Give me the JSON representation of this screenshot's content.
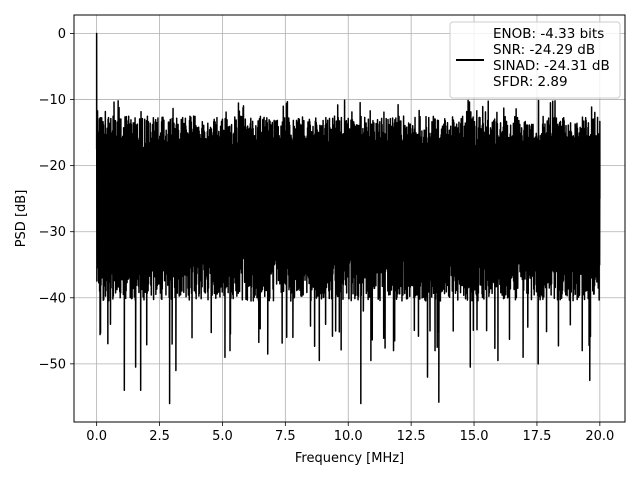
{
  "chart_data": {
    "type": "line",
    "title": "",
    "xlabel": "Frequency [MHz]",
    "ylabel": "PSD [dB]",
    "xlim": [
      -0.9,
      21.0
    ],
    "ylim": [
      -58.8,
      2.8
    ],
    "grid": true,
    "x_ticks": [
      {
        "value": 0.0,
        "label": "0.0"
      },
      {
        "value": 2.5,
        "label": "2.5"
      },
      {
        "value": 5.0,
        "label": "5.0"
      },
      {
        "value": 7.5,
        "label": "7.5"
      },
      {
        "value": 10.0,
        "label": "10.0"
      },
      {
        "value": 12.5,
        "label": "12.5"
      },
      {
        "value": 15.0,
        "label": "15.0"
      },
      {
        "value": 17.5,
        "label": "17.5"
      },
      {
        "value": 20.0,
        "label": "20.0"
      }
    ],
    "y_ticks": [
      {
        "value": 0,
        "label": "0"
      },
      {
        "value": -10,
        "label": "−10"
      },
      {
        "value": -20,
        "label": "−20"
      },
      {
        "value": -30,
        "label": "−30"
      },
      {
        "value": -40,
        "label": "−40"
      },
      {
        "value": -50,
        "label": "−50"
      }
    ],
    "legend": {
      "position": "top-right",
      "lines": [
        "ENOB: -4.33 bits",
        "SNR: -24.29 dB",
        "SINAD: -24.31 dB",
        "SFDR: 2.89"
      ]
    },
    "series": [
      {
        "color": "#000000",
        "x": [
          0.0,
          0.05,
          0.1,
          0.15,
          0.2,
          0.3,
          0.45,
          0.55,
          0.7,
          1.1,
          1.2,
          1.55,
          1.75,
          2.9,
          3.0,
          3.15,
          5.1,
          5.3,
          6.8,
          7.8,
          8.85,
          10.5,
          10.6,
          10.9,
          11.8,
          13.15,
          13.25,
          13.45,
          13.6,
          14.85,
          15.95,
          16.95,
          17.55,
          19.3,
          19.6,
          20.0
        ],
        "y": [
          0.0,
          -18.0,
          -23.0,
          -41.0,
          -20.0,
          -38.0,
          -25.0,
          -44.0,
          -30.0,
          -54.0,
          -35.0,
          -50.5,
          -54.0,
          -56.0,
          -47.0,
          -51.0,
          -49.0,
          -48.0,
          -48.5,
          -46.0,
          -49.5,
          -56.0,
          -42.0,
          -49.5,
          -48.0,
          -52.0,
          -45.0,
          -48.0,
          -55.8,
          -50.5,
          -49.5,
          -49.0,
          -50.0,
          -48.0,
          -52.5,
          -25.0
        ],
        "noise_band": {
          "typical_upper": -15.0,
          "typical_lower": -37.0,
          "peak_upper": -10.0,
          "trough_lower": -44.0
        }
      }
    ]
  }
}
